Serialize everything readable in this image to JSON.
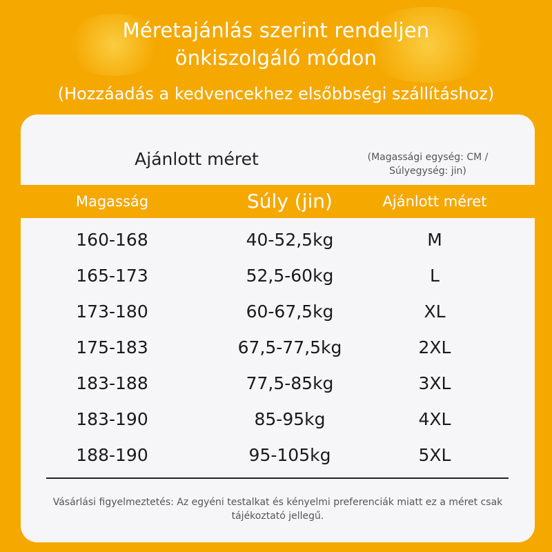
{
  "header": {
    "title_line1": "Méretajánlás szerint rendeljen",
    "title_line2": "önkiszolgáló módon",
    "subtitle": "(Hozzáadás a kedvencekhez elsőbbségi szállításhoz)"
  },
  "card": {
    "title": "Ajánlott méret",
    "unit_note": "(Magassági egység: CM / Súlyegység: jin)",
    "columns": [
      "Magasság",
      "Súly (jin)",
      "Ajánlott méret"
    ],
    "rows": [
      {
        "height": "160-168",
        "weight": "40-52,5kg",
        "size": "M"
      },
      {
        "height": "165-173",
        "weight": "52,5-60kg",
        "size": "L"
      },
      {
        "height": "173-180",
        "weight": "60-67,5kg",
        "size": "XL"
      },
      {
        "height": "175-183",
        "weight": "67,5-77,5kg",
        "size": "2XL"
      },
      {
        "height": "183-188",
        "weight": "77,5-85kg",
        "size": "3XL"
      },
      {
        "height": "183-190",
        "weight": "85-95kg",
        "size": "4XL"
      },
      {
        "height": "188-190",
        "weight": "95-105kg",
        "size": "5XL"
      }
    ],
    "footer_note": "Vásárlási figyelmeztetés: Az egyéni testalkat és kényelmi preferenciák miatt ez a méret csak tájékoztató jellegű."
  },
  "colors": {
    "background": "#F5A800",
    "card": "#F6F6F8",
    "header_text": "#FFFFFF",
    "body_text": "#1A1A1A"
  }
}
